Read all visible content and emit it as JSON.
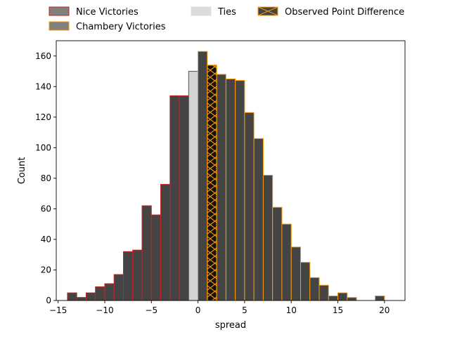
{
  "colors": {
    "nice_fill": "#444444",
    "nice_edge": "#cc2222",
    "chambery_fill": "#444444",
    "chambery_edge": "#ff9900",
    "tie_fill": "#d3d3d3",
    "tie_edge": "#555555",
    "observed_fill": "#111111",
    "observed_edge": "#ff9900",
    "legend_nice_swatch": "#808080",
    "legend_chambery_swatch": "#808080",
    "legend_ties_swatch": "#dcdcdc",
    "legend_observed_swatch": "#444444"
  },
  "chart_data": {
    "type": "bar",
    "title": "",
    "xlabel": "spread",
    "ylabel": "Count",
    "xlim": [
      -15.2,
      22.2
    ],
    "ylim": [
      0,
      170
    ],
    "xticks": [
      -15,
      -10,
      -5,
      0,
      5,
      10,
      15,
      20
    ],
    "xtick_labels": [
      "−15",
      "−10",
      "−5",
      "0",
      "5",
      "10",
      "15",
      "20"
    ],
    "yticks": [
      0,
      20,
      40,
      60,
      80,
      100,
      120,
      140,
      160
    ],
    "ytick_labels": [
      "0",
      "20",
      "40",
      "60",
      "80",
      "100",
      "120",
      "140",
      "160"
    ],
    "bin_width": 1,
    "legend": {
      "placement": "above plot",
      "entries": [
        {
          "label": "Nice Victories",
          "key": "nice"
        },
        {
          "label": "Chambery Victories",
          "key": "chambery"
        },
        {
          "label": "Ties",
          "key": "tie"
        },
        {
          "label": "Observed Point Difference",
          "key": "observed"
        }
      ]
    },
    "series": [
      {
        "name": "Nice Victories",
        "bins": [
          {
            "x": -13.5,
            "count": 5
          },
          {
            "x": -12.5,
            "count": 2
          },
          {
            "x": -11.5,
            "count": 5
          },
          {
            "x": -10.5,
            "count": 9
          },
          {
            "x": -9.5,
            "count": 11
          },
          {
            "x": -8.5,
            "count": 17
          },
          {
            "x": -7.5,
            "count": 32
          },
          {
            "x": -6.5,
            "count": 33
          },
          {
            "x": -5.5,
            "count": 62
          },
          {
            "x": -4.5,
            "count": 56
          },
          {
            "x": -3.5,
            "count": 76
          },
          {
            "x": -2.5,
            "count": 134
          },
          {
            "x": -1.5,
            "count": 134
          }
        ]
      },
      {
        "name": "Ties",
        "bins": [
          {
            "x": -0.5,
            "count": 150
          }
        ]
      },
      {
        "name": "Chambery Victories",
        "bins": [
          {
            "x": 0.5,
            "count": 163
          },
          {
            "x": 2.5,
            "count": 148
          },
          {
            "x": 3.5,
            "count": 145
          },
          {
            "x": 4.5,
            "count": 144
          },
          {
            "x": 5.5,
            "count": 123
          },
          {
            "x": 6.5,
            "count": 106
          },
          {
            "x": 7.5,
            "count": 82
          },
          {
            "x": 8.5,
            "count": 61
          },
          {
            "x": 9.5,
            "count": 50
          },
          {
            "x": 10.5,
            "count": 35
          },
          {
            "x": 11.5,
            "count": 25
          },
          {
            "x": 12.5,
            "count": 15
          },
          {
            "x": 13.5,
            "count": 10
          },
          {
            "x": 14.5,
            "count": 3
          },
          {
            "x": 15.5,
            "count": 5
          },
          {
            "x": 16.5,
            "count": 2
          },
          {
            "x": 17.5,
            "count": 0
          },
          {
            "x": 18.5,
            "count": 0
          },
          {
            "x": 19.5,
            "count": 3
          }
        ]
      },
      {
        "name": "Observed Point Difference",
        "bins": [
          {
            "x": 1.5,
            "count": 154
          }
        ]
      }
    ]
  }
}
